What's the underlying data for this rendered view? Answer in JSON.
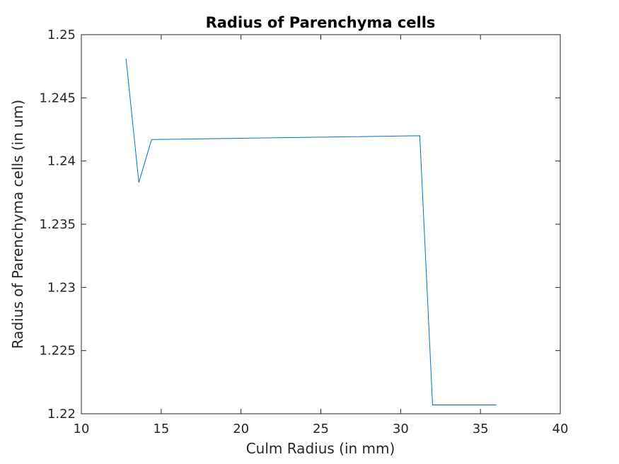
{
  "chart_data": {
    "type": "line",
    "title": "Radius of Parenchyma cells",
    "xlabel": "Culm Radius (in mm)",
    "ylabel": "Radius of Parenchyma cells (in um)",
    "xlim": [
      10,
      40
    ],
    "ylim": [
      1.22,
      1.25
    ],
    "xticks": [
      10,
      15,
      20,
      25,
      30,
      35,
      40
    ],
    "xtick_labels": [
      "10",
      "15",
      "20",
      "25",
      "30",
      "35",
      "40"
    ],
    "yticks": [
      1.22,
      1.225,
      1.23,
      1.235,
      1.24,
      1.245,
      1.25
    ],
    "ytick_labels": [
      "1.22",
      "1.225",
      "1.23",
      "1.235",
      "1.24",
      "1.245",
      "1.25"
    ],
    "grid": false,
    "series": [
      {
        "color": "#0072bd",
        "x": [
          12.8,
          13.6,
          14.4,
          31.2,
          32.0,
          36.0
        ],
        "y": [
          1.2481,
          1.2383,
          1.2417,
          1.242,
          1.2207,
          1.2207
        ]
      }
    ]
  }
}
